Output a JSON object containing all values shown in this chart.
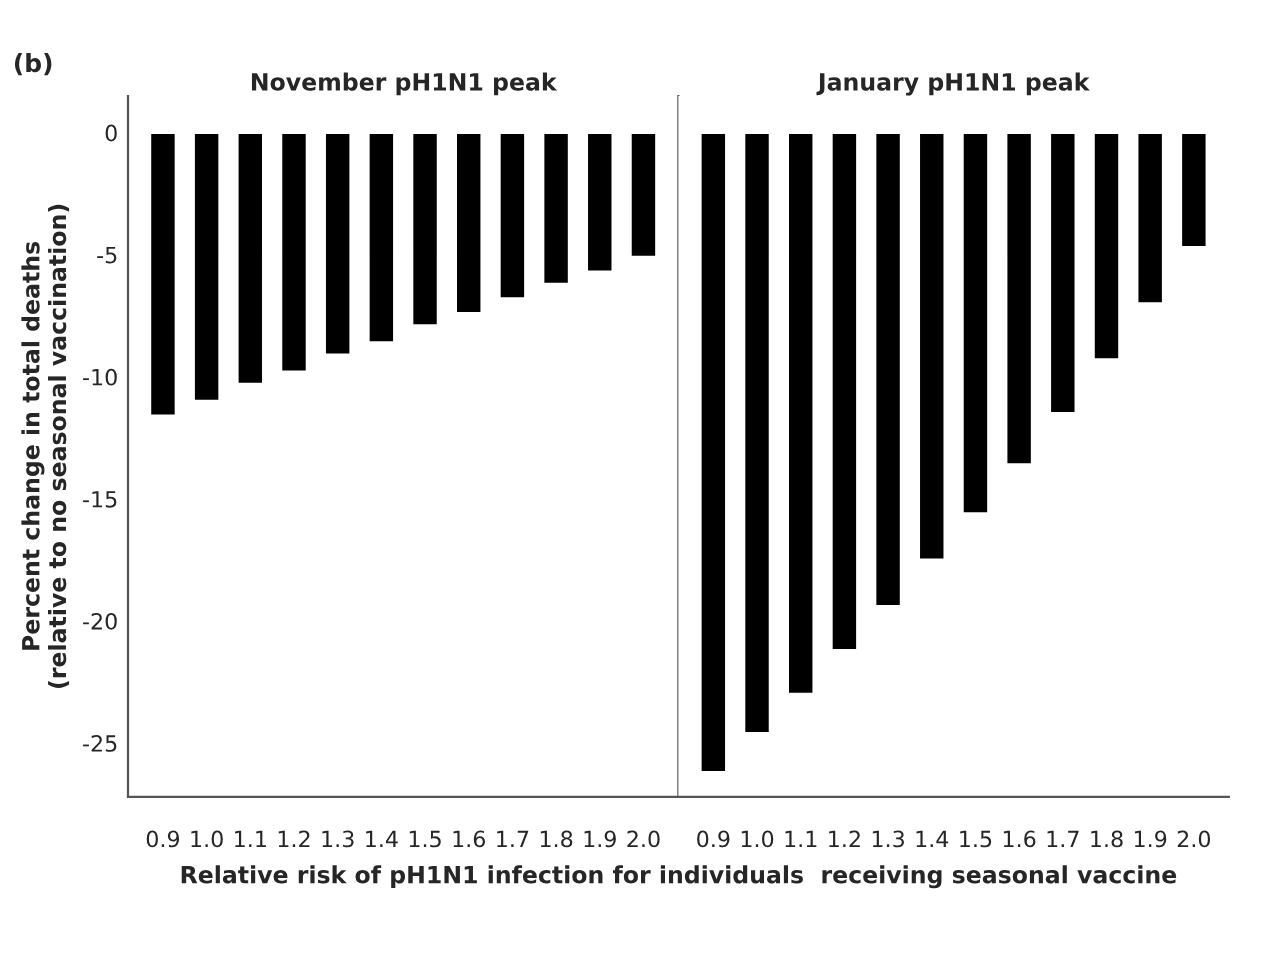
{
  "chart_data": [
    {
      "type": "bar",
      "title": "November pH1N1 peak",
      "ylabel": "Percent change in total deaths\n(relative to no seasonal vaccination)",
      "xlabel": "Relative risk of pH1N1 infection for individuals  receiving seasonal vaccine",
      "annotations": [
        "(b)"
      ],
      "categories": [
        "0.9",
        "1.0",
        "1.1",
        "1.2",
        "1.3",
        "1.4",
        "1.5",
        "1.6",
        "1.7",
        "1.8",
        "1.9",
        "2.0"
      ],
      "series": [
        {
          "color": "#000000",
          "values": [
            -11.6,
            -11.0,
            -10.3,
            -9.8,
            -9.1,
            -8.6,
            -7.9,
            -7.4,
            -6.8,
            -6.2,
            -5.7,
            -5.1
          ]
        }
      ],
      "ylim": [
        -27.2,
        1.5
      ],
      "yticks": [
        0,
        -5,
        -10,
        -15,
        -20,
        -25
      ],
      "grid": false,
      "legend": false
    },
    {
      "type": "bar",
      "title": "January pH1N1 peak",
      "categories": [
        "0.9",
        "1.0",
        "1.1",
        "1.2",
        "1.3",
        "1.4",
        "1.5",
        "1.6",
        "1.7",
        "1.8",
        "1.9",
        "2.0"
      ],
      "series": [
        {
          "color": "#000000",
          "values": [
            -26.2,
            -24.6,
            -23.0,
            -21.2,
            -19.4,
            -17.5,
            -15.6,
            -13.6,
            -11.5,
            -9.3,
            -7.0,
            -4.7
          ]
        }
      ],
      "ylim": [
        -27.2,
        1.5
      ],
      "yticks": [
        0,
        -5,
        -10,
        -15,
        -20,
        -25
      ],
      "tick_labels": "x",
      "grid": false,
      "legend": false
    }
  ]
}
